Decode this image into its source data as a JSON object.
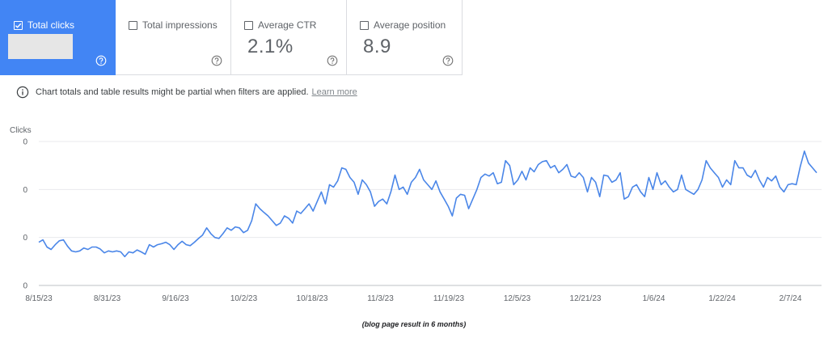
{
  "cards": [
    {
      "key": "clicks",
      "label": "Total clicks",
      "checked": true,
      "value": null
    },
    {
      "key": "impressions",
      "label": "Total impressions",
      "checked": false,
      "value": null
    },
    {
      "key": "ctr",
      "label": "Average CTR",
      "checked": false,
      "value": "2.1%"
    },
    {
      "key": "position",
      "label": "Average position",
      "checked": false,
      "value": "8.9"
    }
  ],
  "colors": {
    "accent": "#4285f4",
    "line": "#4a86e8",
    "grid": "#e8eaed",
    "text": "#5f6368"
  },
  "notice": {
    "text": "Chart totals and table results might be partial when filters are applied.",
    "link": "Learn more",
    "icon": "info-icon"
  },
  "caption": "(blog page result in 6 months)",
  "chart_data": {
    "type": "line",
    "ylabel": "Clicks",
    "y_tick_labels": [
      "0",
      "0",
      "0",
      "0"
    ],
    "x_tick_labels": [
      "8/15/23",
      "8/31/23",
      "9/16/23",
      "10/2/23",
      "10/18/23",
      "11/3/23",
      "11/19/23",
      "12/5/23",
      "12/21/23",
      "1/6/24",
      "1/22/24",
      "2/7/24"
    ],
    "ylim": [
      0,
      3
    ],
    "grid": true,
    "series": [
      {
        "values": [
          0.9,
          0.95,
          0.8,
          0.75,
          0.85,
          0.93,
          0.95,
          0.82,
          0.72,
          0.7,
          0.72,
          0.78,
          0.75,
          0.8,
          0.8,
          0.76,
          0.68,
          0.72,
          0.7,
          0.72,
          0.7,
          0.6,
          0.7,
          0.68,
          0.74,
          0.7,
          0.65,
          0.85,
          0.8,
          0.85,
          0.87,
          0.9,
          0.85,
          0.75,
          0.85,
          0.92,
          0.85,
          0.83,
          0.9,
          0.98,
          1.05,
          1.2,
          1.08,
          1.0,
          0.98,
          1.08,
          1.2,
          1.15,
          1.22,
          1.2,
          1.1,
          1.15,
          1.35,
          1.7,
          1.6,
          1.52,
          1.45,
          1.35,
          1.25,
          1.3,
          1.45,
          1.4,
          1.3,
          1.55,
          1.5,
          1.6,
          1.7,
          1.55,
          1.75,
          1.95,
          1.7,
          2.1,
          2.05,
          2.18,
          2.45,
          2.42,
          2.25,
          2.15,
          1.9,
          2.2,
          2.1,
          1.95,
          1.65,
          1.75,
          1.8,
          1.7,
          1.95,
          2.3,
          2.0,
          2.05,
          1.9,
          2.15,
          2.25,
          2.42,
          2.2,
          2.1,
          2.0,
          2.18,
          1.95,
          1.8,
          1.65,
          1.45,
          1.82,
          1.9,
          1.88,
          1.6,
          1.8,
          2.0,
          2.25,
          2.32,
          2.28,
          2.35,
          2.12,
          2.15,
          2.6,
          2.5,
          2.1,
          2.2,
          2.38,
          2.2,
          2.45,
          2.37,
          2.52,
          2.58,
          2.6,
          2.45,
          2.5,
          2.35,
          2.42,
          2.52,
          2.28,
          2.25,
          2.35,
          2.25,
          1.95,
          2.25,
          2.15,
          1.85,
          2.3,
          2.28,
          2.15,
          2.2,
          2.35,
          1.8,
          1.85,
          2.05,
          2.1,
          1.95,
          1.85,
          2.25,
          2.0,
          2.35,
          2.1,
          2.18,
          2.05,
          1.95,
          2.0,
          2.3,
          2.0,
          1.95,
          1.9,
          2.0,
          2.2,
          2.6,
          2.45,
          2.35,
          2.25,
          2.05,
          2.2,
          2.1,
          2.6,
          2.45,
          2.45,
          2.3,
          2.25,
          2.4,
          2.2,
          2.05,
          2.25,
          2.18,
          2.28,
          2.05,
          1.95,
          2.1,
          2.12,
          2.1,
          2.48,
          2.8,
          2.55,
          2.45,
          2.35
        ]
      }
    ]
  }
}
